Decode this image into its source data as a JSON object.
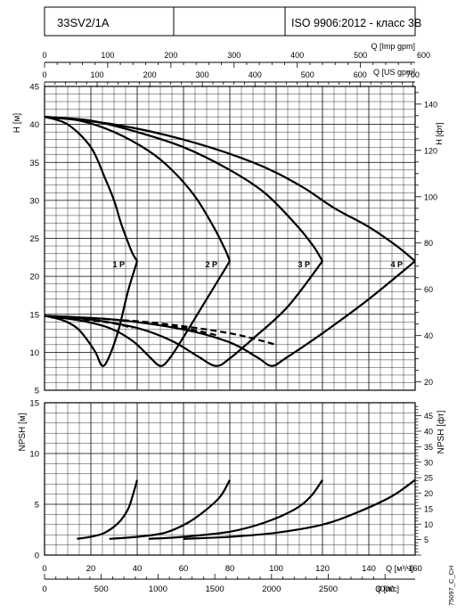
{
  "header": {
    "model": "33SV2/1A",
    "standard": "ISO 9906:2012 - класс 3B"
  },
  "chart_data": [
    {
      "type": "line",
      "name": "head-curves",
      "ylabel_left": "H [м]",
      "ylabel_right": "H [фт]",
      "ylim": [
        5,
        45
      ],
      "xlim": [
        0,
        160
      ],
      "yticks": [
        5,
        10,
        15,
        20,
        25,
        30,
        35,
        40,
        45
      ],
      "yticks_right": [
        20,
        40,
        60,
        80,
        100,
        120,
        140
      ],
      "grid": true,
      "series": [
        {
          "name": "1 P",
          "label": "1 P",
          "x": [
            0,
            10,
            20,
            26,
            30,
            33,
            36,
            38,
            40
          ],
          "y": [
            41,
            40,
            37,
            33,
            30,
            27,
            24.5,
            23,
            22
          ]
        },
        {
          "name": "2 P",
          "label": "2 P",
          "x": [
            0,
            15,
            30,
            45,
            55,
            65,
            73,
            78,
            80
          ],
          "y": [
            41,
            40.5,
            39,
            36.5,
            34,
            30.5,
            26.5,
            23.5,
            22
          ]
        },
        {
          "name": "3 P",
          "label": "3 P",
          "x": [
            0,
            20,
            40,
            60,
            80,
            95,
            108,
            116,
            120
          ],
          "y": [
            41,
            40.5,
            39,
            37,
            34,
            31,
            27,
            24,
            22
          ]
        },
        {
          "name": "4 P",
          "label": "4 P",
          "x": [
            0,
            30,
            60,
            90,
            110,
            125,
            140,
            152,
            160
          ],
          "y": [
            41,
            40,
            38,
            35,
            32,
            29,
            26.5,
            24,
            22
          ]
        },
        {
          "name": "efficiency-1",
          "x": [
            0,
            8,
            14,
            18,
            22,
            25,
            28,
            32,
            36,
            40
          ],
          "y": [
            14.8,
            14.2,
            13.2,
            11.8,
            10,
            8.2,
            9.5,
            13,
            18,
            22
          ]
        },
        {
          "name": "efficiency-2",
          "x": [
            0,
            15,
            28,
            38,
            45,
            50,
            54,
            60,
            68,
            80
          ],
          "y": [
            14.8,
            14.2,
            13.2,
            11.5,
            9.5,
            8.2,
            9.2,
            12,
            16,
            22
          ]
        },
        {
          "name": "efficiency-3",
          "x": [
            0,
            20,
            40,
            55,
            66,
            74,
            80,
            90,
            105,
            120
          ],
          "y": [
            14.8,
            14.3,
            13.2,
            11.5,
            9.5,
            8.2,
            9.2,
            11.8,
            16,
            22
          ]
        },
        {
          "name": "efficiency-4",
          "x": [
            0,
            30,
            60,
            80,
            92,
            98,
            104,
            120,
            140,
            160
          ],
          "y": [
            14.8,
            14.3,
            13,
            11.3,
            9.3,
            8.2,
            9.2,
            12.5,
            17,
            22
          ]
        },
        {
          "name": "dashed-1",
          "dashed": true,
          "x": [
            0,
            10,
            20,
            30,
            38
          ],
          "y": [
            14.8,
            14.6,
            14.2,
            13.8,
            13.2
          ]
        },
        {
          "name": "dashed-2",
          "dashed": true,
          "x": [
            0,
            20,
            40,
            60,
            75
          ],
          "y": [
            14.8,
            14.5,
            14,
            13.2,
            12.2
          ]
        },
        {
          "name": "dashed-3",
          "dashed": true,
          "x": [
            0,
            25,
            50,
            80,
            100
          ],
          "y": [
            14.8,
            14.4,
            13.8,
            12.5,
            11
          ]
        }
      ]
    },
    {
      "type": "line",
      "name": "npsh-curves",
      "ylabel_left": "NPSH [м]",
      "ylabel_right": "NPSH [фт]",
      "ylim": [
        0,
        15
      ],
      "xlim": [
        0,
        160
      ],
      "yticks": [
        0,
        5,
        10,
        15
      ],
      "yticks_right": [
        5,
        10,
        15,
        20,
        25,
        30,
        35,
        40,
        45
      ],
      "xticks": [
        0,
        20,
        40,
        60,
        80,
        100,
        120,
        140,
        160
      ],
      "xlabel": "Q [м³/ч]",
      "grid": true,
      "series": [
        {
          "name": "npsh-1",
          "x": [
            14,
            20,
            26,
            32,
            36,
            38,
            40
          ],
          "y": [
            1.6,
            1.8,
            2.2,
            3.2,
            4.5,
            5.8,
            7.4
          ]
        },
        {
          "name": "npsh-2",
          "x": [
            28,
            40,
            52,
            62,
            70,
            76,
            80
          ],
          "y": [
            1.6,
            1.8,
            2.2,
            3.2,
            4.5,
            5.8,
            7.4
          ]
        },
        {
          "name": "npsh-3",
          "x": [
            45,
            60,
            80,
            95,
            108,
            115,
            120
          ],
          "y": [
            1.6,
            1.8,
            2.3,
            3.2,
            4.5,
            5.8,
            7.4
          ]
        },
        {
          "name": "npsh-4",
          "x": [
            60,
            80,
            100,
            120,
            135,
            150,
            160
          ],
          "y": [
            1.6,
            1.8,
            2.2,
            3.0,
            4.2,
            5.8,
            7.4
          ]
        }
      ]
    }
  ],
  "top_axes": {
    "imp_gpm": {
      "label": "Q [Imp gpm]",
      "max_units": 600,
      "ticks": [
        "0",
        "100",
        "200",
        "300",
        "400",
        "500",
        "600"
      ]
    },
    "us_gpm": {
      "label": "Q [US gpm]",
      "max_units": 700,
      "ticks": [
        "0",
        "100",
        "200",
        "300",
        "400",
        "500",
        "600",
        "700"
      ]
    }
  },
  "bottom_axis_ls": {
    "label": "Q [л/с]",
    "ticks": [
      "0",
      "500",
      "1000",
      "1500",
      "2000",
      "2500",
      "3000"
    ]
  },
  "code": "75097_C_CH"
}
